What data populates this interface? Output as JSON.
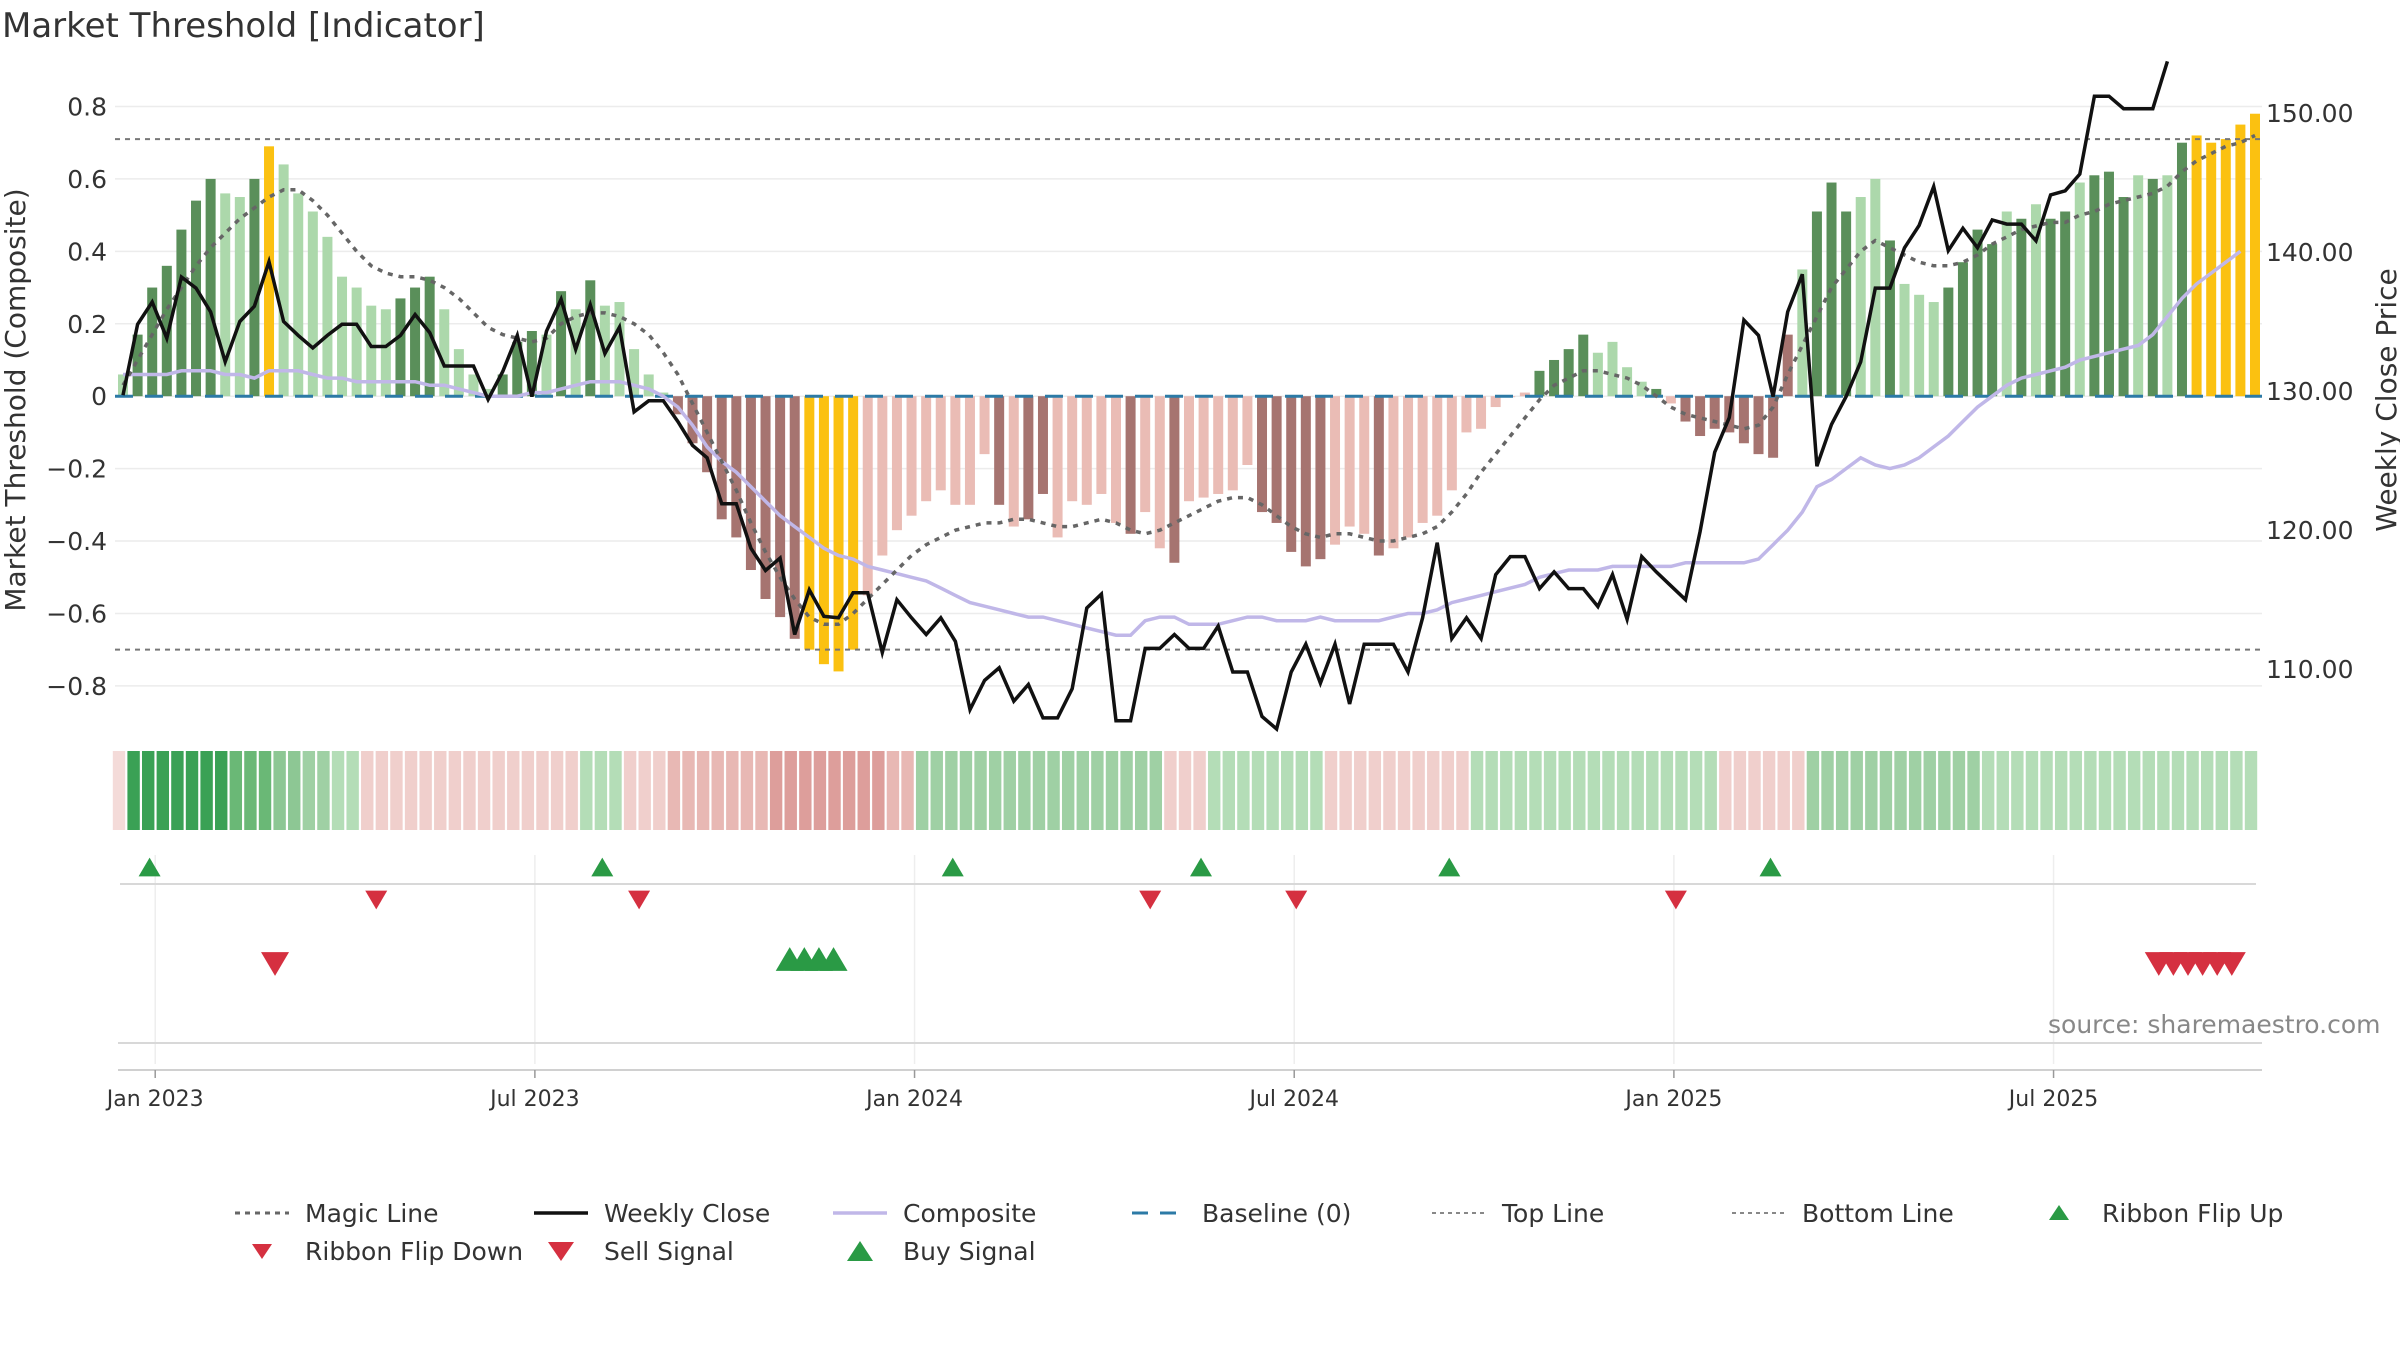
{
  "title": "Market Threshold [Indicator]",
  "source": "source: sharemaestro.com",
  "colors": {
    "dark_green": "#5a8f5a",
    "light_green": "#acd8ab",
    "dark_red": "#a67470",
    "light_red": "#eabcb5",
    "gold": "#fbc111",
    "weekly_close": "#111111",
    "composite": "#c0b7e8",
    "magic_line": "#666666",
    "baseline": "#2c7aa6",
    "sell": "#d53040",
    "buy": "#2a9a45"
  },
  "chart_data": {
    "type": "bar",
    "y_left_label": "Market Threshold (Composite)",
    "y_right_label": "Weekly Close Price",
    "y_left_ticks": [
      "0.8",
      "0.6",
      "0.4",
      "0.2",
      "0",
      "−0.2",
      "−0.4",
      "−0.6",
      "−0.8"
    ],
    "y_right_ticks": [
      "150.00",
      "140.00",
      "130.00",
      "120.00",
      "110.00"
    ],
    "x_ticks": [
      "Jan 2023",
      "Jul 2023",
      "Jan 2024",
      "Jul 2024",
      "Jan 2025",
      "Jul 2025"
    ],
    "ylim_left": [
      -0.85,
      0.84
    ],
    "ylim_right": [
      107.5,
      151.5
    ],
    "top_line": 0.71,
    "bottom_line": -0.7,
    "baseline": 0,
    "composite_bars": [
      0.06,
      0.17,
      0.3,
      0.36,
      0.46,
      0.54,
      0.6,
      0.56,
      0.55,
      0.6,
      0.69,
      0.64,
      0.56,
      0.51,
      0.44,
      0.33,
      0.3,
      0.25,
      0.24,
      0.27,
      0.3,
      0.33,
      0.24,
      0.13,
      0.06,
      0.02,
      0.06,
      0.15,
      0.18,
      0.17,
      0.29,
      0.24,
      0.32,
      0.25,
      0.26,
      0.13,
      0.06,
      0.01,
      -0.05,
      -0.13,
      -0.21,
      -0.34,
      -0.39,
      -0.48,
      -0.56,
      -0.61,
      -0.67,
      -0.7,
      -0.74,
      -0.76,
      -0.7,
      -0.55,
      -0.44,
      -0.37,
      -0.33,
      -0.29,
      -0.26,
      -0.3,
      -0.3,
      -0.16,
      -0.3,
      -0.36,
      -0.34,
      -0.27,
      -0.39,
      -0.29,
      -0.3,
      -0.27,
      -0.35,
      -0.38,
      -0.32,
      -0.42,
      -0.46,
      -0.29,
      -0.28,
      -0.27,
      -0.26,
      -0.19,
      -0.32,
      -0.35,
      -0.43,
      -0.47,
      -0.45,
      -0.41,
      -0.36,
      -0.38,
      -0.44,
      -0.42,
      -0.39,
      -0.35,
      -0.33,
      -0.26,
      -0.1,
      -0.09,
      -0.03,
      0.0,
      0.01,
      0.07,
      0.1,
      0.13,
      0.17,
      0.12,
      0.15,
      0.08,
      0.04,
      0.02,
      -0.02,
      -0.07,
      -0.11,
      -0.09,
      -0.1,
      -0.13,
      -0.16,
      -0.17,
      0.17,
      0.35,
      0.51,
      0.59,
      0.51,
      0.55,
      0.6,
      0.43,
      0.31,
      0.28,
      0.26,
      0.3,
      0.37,
      0.46,
      0.42,
      0.51,
      0.49,
      0.53,
      0.49,
      0.51,
      0.59,
      0.61,
      0.62,
      0.55,
      0.61,
      0.6,
      0.61,
      0.7,
      0.72,
      0.7,
      0.71,
      0.75,
      0.78
    ],
    "bar_state": [
      "LG",
      "DG",
      "DG",
      "DG",
      "DG",
      "DG",
      "DG",
      "LG",
      "LG",
      "DG",
      "GO",
      "LG",
      "LG",
      "LG",
      "LG",
      "LG",
      "LG",
      "LG",
      "LG",
      "DG",
      "DG",
      "DG",
      "LG",
      "LG",
      "LG",
      "LG",
      "DG",
      "DG",
      "DG",
      "LG",
      "DG",
      "LG",
      "DG",
      "LG",
      "LG",
      "LG",
      "LG",
      "LG",
      "DR",
      "DR",
      "DR",
      "DR",
      "DR",
      "DR",
      "DR",
      "DR",
      "DR",
      "GO",
      "GO",
      "GO",
      "GO",
      "LR",
      "LR",
      "LR",
      "LR",
      "LR",
      "LR",
      "LR",
      "LR",
      "LR",
      "DR",
      "LR",
      "DR",
      "DR",
      "LR",
      "LR",
      "LR",
      "LR",
      "LR",
      "DR",
      "LR",
      "LR",
      "DR",
      "LR",
      "LR",
      "LR",
      "LR",
      "LR",
      "DR",
      "DR",
      "DR",
      "DR",
      "DR",
      "LR",
      "LR",
      "LR",
      "DR",
      "LR",
      "LR",
      "LR",
      "LR",
      "LR",
      "LR",
      "LR",
      "LR",
      "LR",
      "LR",
      "DG",
      "DG",
      "DG",
      "DG",
      "LG",
      "LG",
      "LG",
      "LG",
      "DG",
      "LR",
      "DR",
      "DR",
      "DR",
      "DR",
      "DR",
      "DR",
      "DR",
      "DR",
      "LG",
      "DG",
      "DG",
      "DG",
      "LG",
      "LG",
      "DG",
      "LG",
      "LG",
      "LG",
      "DG",
      "DG",
      "DG",
      "DG",
      "LG",
      "DG",
      "LG",
      "DG",
      "DG",
      "LG",
      "DG",
      "DG",
      "DG",
      "LG",
      "DG",
      "LG",
      "DG",
      "GO",
      "GO",
      "GO",
      "GO",
      "GO",
      "GO"
    ],
    "composite_line": [
      0.06,
      0.06,
      0.06,
      0.06,
      0.07,
      0.07,
      0.07,
      0.06,
      0.06,
      0.05,
      0.07,
      0.07,
      0.07,
      0.06,
      0.05,
      0.05,
      0.04,
      0.04,
      0.04,
      0.04,
      0.04,
      0.03,
      0.03,
      0.02,
      0.01,
      0.0,
      0.0,
      0.0,
      0.01,
      0.01,
      0.02,
      0.03,
      0.04,
      0.04,
      0.04,
      0.03,
      0.02,
      0.0,
      -0.03,
      -0.08,
      -0.14,
      -0.18,
      -0.21,
      -0.25,
      -0.29,
      -0.33,
      -0.36,
      -0.39,
      -0.42,
      -0.44,
      -0.45,
      -0.47,
      -0.48,
      -0.49,
      -0.5,
      -0.51,
      -0.53,
      -0.55,
      -0.57,
      -0.58,
      -0.59,
      -0.6,
      -0.61,
      -0.61,
      -0.62,
      -0.63,
      -0.64,
      -0.65,
      -0.66,
      -0.66,
      -0.62,
      -0.61,
      -0.61,
      -0.63,
      -0.63,
      -0.63,
      -0.62,
      -0.61,
      -0.61,
      -0.62,
      -0.62,
      -0.62,
      -0.61,
      -0.62,
      -0.62,
      -0.62,
      -0.62,
      -0.61,
      -0.6,
      -0.6,
      -0.59,
      -0.57,
      -0.56,
      -0.55,
      -0.54,
      -0.53,
      -0.52,
      -0.5,
      -0.49,
      -0.48,
      -0.48,
      -0.48,
      -0.47,
      -0.47,
      -0.47,
      -0.47,
      -0.47,
      -0.46,
      -0.46,
      -0.46,
      -0.46,
      -0.46,
      -0.45,
      -0.41,
      -0.37,
      -0.32,
      -0.25,
      -0.23,
      -0.2,
      -0.17,
      -0.19,
      -0.2,
      -0.19,
      -0.17,
      -0.14,
      -0.11,
      -0.07,
      -0.03,
      0.0,
      0.03,
      0.05,
      0.06,
      0.07,
      0.08,
      0.1,
      0.11,
      0.12,
      0.13,
      0.14,
      0.17,
      0.22,
      0.27,
      0.31,
      0.34,
      0.37,
      0.4
    ],
    "magic_line": [
      0.03,
      0.1,
      0.17,
      0.24,
      0.3,
      0.36,
      0.41,
      0.45,
      0.49,
      0.52,
      0.55,
      0.57,
      0.57,
      0.54,
      0.5,
      0.45,
      0.4,
      0.36,
      0.34,
      0.33,
      0.33,
      0.32,
      0.3,
      0.27,
      0.23,
      0.19,
      0.17,
      0.16,
      0.15,
      0.16,
      0.2,
      0.22,
      0.23,
      0.23,
      0.22,
      0.2,
      0.17,
      0.12,
      0.06,
      -0.02,
      -0.1,
      -0.18,
      -0.26,
      -0.35,
      -0.43,
      -0.5,
      -0.56,
      -0.61,
      -0.63,
      -0.63,
      -0.6,
      -0.56,
      -0.52,
      -0.48,
      -0.44,
      -0.41,
      -0.39,
      -0.37,
      -0.36,
      -0.35,
      -0.35,
      -0.34,
      -0.34,
      -0.35,
      -0.36,
      -0.36,
      -0.35,
      -0.34,
      -0.35,
      -0.37,
      -0.38,
      -0.37,
      -0.35,
      -0.33,
      -0.31,
      -0.29,
      -0.28,
      -0.28,
      -0.3,
      -0.33,
      -0.36,
      -0.38,
      -0.39,
      -0.38,
      -0.38,
      -0.39,
      -0.4,
      -0.4,
      -0.39,
      -0.38,
      -0.36,
      -0.32,
      -0.27,
      -0.21,
      -0.16,
      -0.11,
      -0.06,
      -0.01,
      0.03,
      0.05,
      0.07,
      0.07,
      0.06,
      0.05,
      0.03,
      0.0,
      -0.03,
      -0.05,
      -0.06,
      -0.07,
      -0.08,
      -0.09,
      -0.08,
      -0.03,
      0.06,
      0.14,
      0.22,
      0.3,
      0.35,
      0.4,
      0.43,
      0.41,
      0.39,
      0.37,
      0.36,
      0.36,
      0.37,
      0.39,
      0.42,
      0.44,
      0.46,
      0.47,
      0.48,
      0.48,
      0.5,
      0.51,
      0.53,
      0.54,
      0.55,
      0.56,
      0.58,
      0.62,
      0.65,
      0.67,
      0.69,
      0.7,
      0.72
    ],
    "weekly_close": [
      129.7,
      134.8,
      136.4,
      133.8,
      138.2,
      137.4,
      135.7,
      132.1,
      135.0,
      136.1,
      139.3,
      135.0,
      134.0,
      133.1,
      134.0,
      134.8,
      134.8,
      133.2,
      133.2,
      134.0,
      135.5,
      134.2,
      131.8,
      131.8,
      131.8,
      129.4,
      131.4,
      134.0,
      129.6,
      134.3,
      136.6,
      133.0,
      136.2,
      132.7,
      134.6,
      128.5,
      129.3,
      129.3,
      127.8,
      126.1,
      125.2,
      121.9,
      121.9,
      118.7,
      117.1,
      118.0,
      112.5,
      115.7,
      113.8,
      113.7,
      115.5,
      115.5,
      111.2,
      115.0,
      113.7,
      112.5,
      113.7,
      112.0,
      107.1,
      109.2,
      110.1,
      107.7,
      108.9,
      106.5,
      106.5,
      108.6,
      114.4,
      115.4,
      106.3,
      106.3,
      111.5,
      111.5,
      112.5,
      111.5,
      111.5,
      113.1,
      109.8,
      109.8,
      106.6,
      105.7,
      109.8,
      111.8,
      109.0,
      111.8,
      107.5,
      111.8,
      111.8,
      111.8,
      109.8,
      113.7,
      119.1,
      112.2,
      113.7,
      112.2,
      116.8,
      118.1,
      118.1,
      115.8,
      117.0,
      115.8,
      115.8,
      114.5,
      116.8,
      113.6,
      118.1,
      117.0,
      116.0,
      115.0,
      119.9,
      125.6,
      128.1,
      135.1,
      134.0,
      129.6,
      135.7,
      138.4,
      124.6,
      127.6,
      129.6,
      132.1,
      137.4,
      137.4,
      140.3,
      141.9,
      144.7,
      140.1,
      141.7,
      140.3,
      142.3,
      142.0,
      142.0,
      140.8,
      144.1,
      144.4,
      145.6,
      151.2,
      151.2,
      150.3,
      150.3,
      150.3,
      153.7
    ],
    "ribbon_state": [
      "LR",
      "G5",
      "G5",
      "G5",
      "G5",
      "G5",
      "G5",
      "G5",
      "G4",
      "G4",
      "G4",
      "G3",
      "G3",
      "G2",
      "G2",
      "G1",
      "G1",
      "R1",
      "R1",
      "R1",
      "R1",
      "R1",
      "R1",
      "R1",
      "R1",
      "R1",
      "R1",
      "R1",
      "R1",
      "R1",
      "R1",
      "R1",
      "G1",
      "G1",
      "G1",
      "R1",
      "R1",
      "R1",
      "R2",
      "R2",
      "R2",
      "R2",
      "R2",
      "R2",
      "R2",
      "R3",
      "R3",
      "R3",
      "R3",
      "R3",
      "R3",
      "R3",
      "R3",
      "R2",
      "R2",
      "G2",
      "G2",
      "G2",
      "G2",
      "G2",
      "G2",
      "G2",
      "G2",
      "G2",
      "G2",
      "G2",
      "G2",
      "G2",
      "G2",
      "G2",
      "G2",
      "G2",
      "R1",
      "R1",
      "R1",
      "G1",
      "G1",
      "G1",
      "G1",
      "G1",
      "G1",
      "G1",
      "G1",
      "R1",
      "R1",
      "R1",
      "R1",
      "R1",
      "R1",
      "R1",
      "R1",
      "R1",
      "R1",
      "G1",
      "G1",
      "G1",
      "G1",
      "G1",
      "G1",
      "G1",
      "G1",
      "G1",
      "G1",
      "G1",
      "G1",
      "G1",
      "G1",
      "G1",
      "G1",
      "G1",
      "R1",
      "R1",
      "R1",
      "R1",
      "R1",
      "R1",
      "G2",
      "G2",
      "G2",
      "G2",
      "G2",
      "G2",
      "G2",
      "G2",
      "G2",
      "G2",
      "G2",
      "G2",
      "G1",
      "G1",
      "G1",
      "G1",
      "G1",
      "G1",
      "G1",
      "G1",
      "G1",
      "G1",
      "G1",
      "G1",
      "G1",
      "G1",
      "G1",
      "G1",
      "G1",
      "G1",
      "G1"
    ],
    "ribbon_flip_up": [
      1,
      32,
      56,
      73,
      90,
      112
    ],
    "ribbon_flip_down": [
      17,
      35,
      70,
      80,
      106
    ],
    "sell_signal": [
      10,
      139,
      140,
      141,
      142,
      143,
      144
    ],
    "buy_signal": [
      46,
      47,
      48,
      49
    ],
    "x_tick_index": [
      2,
      28,
      54,
      80,
      106,
      132
    ],
    "legend": [
      {
        "key": "magic",
        "label": "Magic Line"
      },
      {
        "key": "close",
        "label": "Weekly Close"
      },
      {
        "key": "composite",
        "label": "Composite"
      },
      {
        "key": "baseline",
        "label": "Baseline (0)"
      },
      {
        "key": "top",
        "label": "Top Line"
      },
      {
        "key": "bottom",
        "label": "Bottom Line"
      },
      {
        "key": "flipup",
        "label": "Ribbon Flip Up"
      },
      {
        "key": "flipdown",
        "label": "Ribbon Flip Down"
      },
      {
        "key": "sell",
        "label": "Sell Signal"
      },
      {
        "key": "buy",
        "label": "Buy Signal"
      }
    ]
  }
}
